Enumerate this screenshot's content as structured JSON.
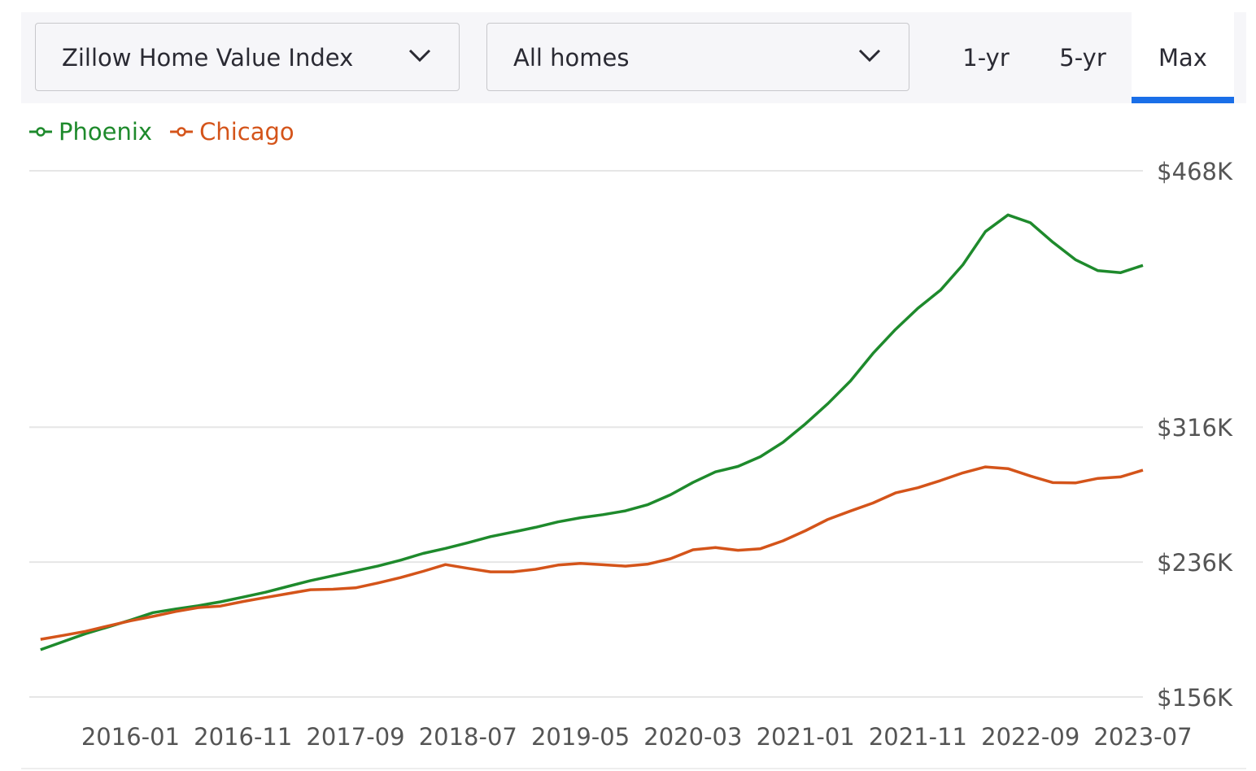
{
  "controls": {
    "metric": "Zillow Home Value Index",
    "home_type": "All homes",
    "ranges": [
      "1-yr",
      "5-yr",
      "Max"
    ],
    "selected_range_index": 2
  },
  "chart_data": {
    "type": "line",
    "x": [
      "2015-05",
      "2015-07",
      "2015-09",
      "2015-11",
      "2016-01",
      "2016-03",
      "2016-05",
      "2016-07",
      "2016-09",
      "2016-11",
      "2017-01",
      "2017-03",
      "2017-05",
      "2017-07",
      "2017-09",
      "2017-11",
      "2018-01",
      "2018-03",
      "2018-05",
      "2018-07",
      "2018-09",
      "2018-11",
      "2019-01",
      "2019-03",
      "2019-05",
      "2019-07",
      "2019-09",
      "2019-11",
      "2020-01",
      "2020-03",
      "2020-05",
      "2020-07",
      "2020-09",
      "2020-11",
      "2021-01",
      "2021-03",
      "2021-05",
      "2021-07",
      "2021-09",
      "2021-11",
      "2022-01",
      "2022-03",
      "2022-05",
      "2022-07",
      "2022-09",
      "2022-11",
      "2023-01",
      "2023-03",
      "2023-05",
      "2023-07"
    ],
    "series": [
      {
        "name": "Phoenix",
        "color": "#1e8a2c",
        "values": [
          184000,
          188800,
          193500,
          197500,
          201600,
          206000,
          208200,
          210100,
          212400,
          215200,
          218100,
          221600,
          225000,
          227900,
          230800,
          233700,
          237100,
          241100,
          244100,
          247500,
          251100,
          253800,
          256600,
          259800,
          262300,
          264100,
          266400,
          270100,
          275900,
          283200,
          289500,
          292700,
          298500,
          307000,
          318000,
          330000,
          343400,
          359700,
          373900,
          386500,
          397200,
          412300,
          432000,
          441800,
          437200,
          425600,
          415300,
          408800,
          407600,
          411900
        ]
      },
      {
        "name": "Chicago",
        "color": "#d4541a",
        "values": [
          190200,
          192500,
          194900,
          198100,
          201200,
          203800,
          206700,
          209000,
          209900,
          212600,
          215000,
          217300,
          219600,
          219900,
          220700,
          223600,
          226800,
          230500,
          234500,
          232300,
          230200,
          230200,
          231700,
          234200,
          235200,
          234400,
          233600,
          234800,
          238000,
          243300,
          244600,
          243000,
          243900,
          248600,
          254600,
          261300,
          266300,
          271000,
          277000,
          280100,
          284300,
          288900,
          292400,
          291400,
          287000,
          283100,
          282900,
          285600,
          286500,
          290500
        ]
      }
    ],
    "xlim": [
      "2015-04",
      "2023-07"
    ],
    "xticks": [
      "2016-01",
      "2016-11",
      "2017-09",
      "2018-07",
      "2019-05",
      "2020-03",
      "2021-01",
      "2021-11",
      "2022-09",
      "2023-07"
    ],
    "ylim": [
      156000,
      468000
    ],
    "yticks": [
      {
        "value": 156000,
        "label": "$156K"
      },
      {
        "value": 236000,
        "label": "$236K"
      },
      {
        "value": 316000,
        "label": "$316K"
      },
      {
        "value": 468000,
        "label": "$468K"
      }
    ],
    "grid": true,
    "legend": "top-left"
  }
}
